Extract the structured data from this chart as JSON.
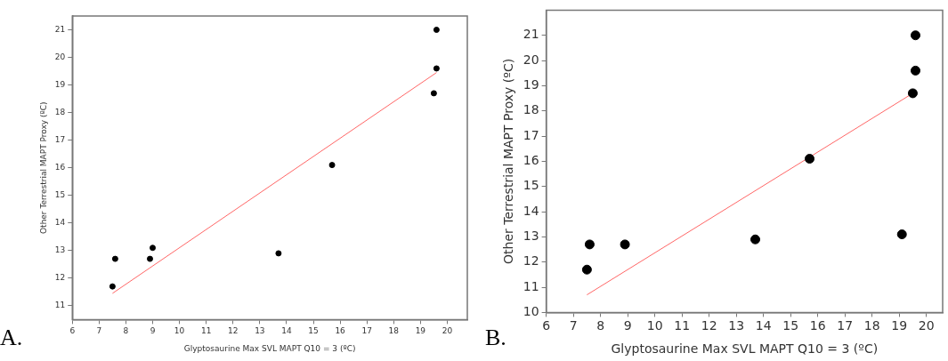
{
  "chart_data": [
    {
      "type": "scatter",
      "xlabel": "Glyptosaurine Max SVL MAPT Q10 = 3 (ºC)",
      "ylabel": "Other Terrestrial MAPT Proxy (ºC)",
      "annotations": [
        "A."
      ],
      "xlim": [
        6,
        20.75
      ],
      "xticks": [
        6,
        7,
        8,
        9,
        10,
        11,
        12,
        13,
        14,
        15,
        16,
        17,
        18,
        19,
        20
      ],
      "ylim": [
        10.5,
        21.5
      ],
      "yticks": [
        11,
        12,
        13,
        14,
        15,
        16,
        17,
        18,
        19,
        20,
        21
      ],
      "grid": false,
      "legend": false,
      "series": [
        {
          "marker": "circle",
          "color": "#000000",
          "x": [
            7.5,
            7.6,
            8.9,
            9.0,
            13.7,
            15.7,
            19.5,
            19.6,
            19.6
          ],
          "values": [
            11.7,
            12.7,
            12.7,
            13.1,
            12.9,
            16.1,
            18.7,
            19.6,
            21.0
          ]
        },
        {
          "type": "line",
          "color": "#ff6666",
          "x": [
            7.5,
            19.6
          ],
          "values": [
            11.45,
            19.45
          ]
        }
      ]
    },
    {
      "type": "scatter",
      "xlabel": "Glyptosaurine Max SVL MAPT Q10 = 3 (ºC)",
      "ylabel": "Other Terrestrial MAPT Proxy (ºC)",
      "annotations": [
        "B."
      ],
      "xlim": [
        6,
        20.6
      ],
      "xticks": [
        6,
        7,
        8,
        9,
        10,
        11,
        12,
        13,
        14,
        15,
        16,
        17,
        18,
        19,
        20
      ],
      "ylim": [
        10,
        22
      ],
      "yticks": [
        10,
        11,
        12,
        13,
        14,
        15,
        16,
        17,
        18,
        19,
        20,
        21
      ],
      "grid": false,
      "legend": false,
      "series": [
        {
          "marker": "circle",
          "color": "#000000",
          "x": [
            7.5,
            7.6,
            8.9,
            13.7,
            15.7,
            19.1,
            19.5,
            19.6,
            19.6
          ],
          "values": [
            11.7,
            12.7,
            12.7,
            12.9,
            16.1,
            13.1,
            18.7,
            19.6,
            21.0
          ]
        },
        {
          "type": "line",
          "color": "#ff6666",
          "x": [
            7.5,
            19.5
          ],
          "values": [
            10.7,
            18.7
          ]
        }
      ]
    }
  ]
}
